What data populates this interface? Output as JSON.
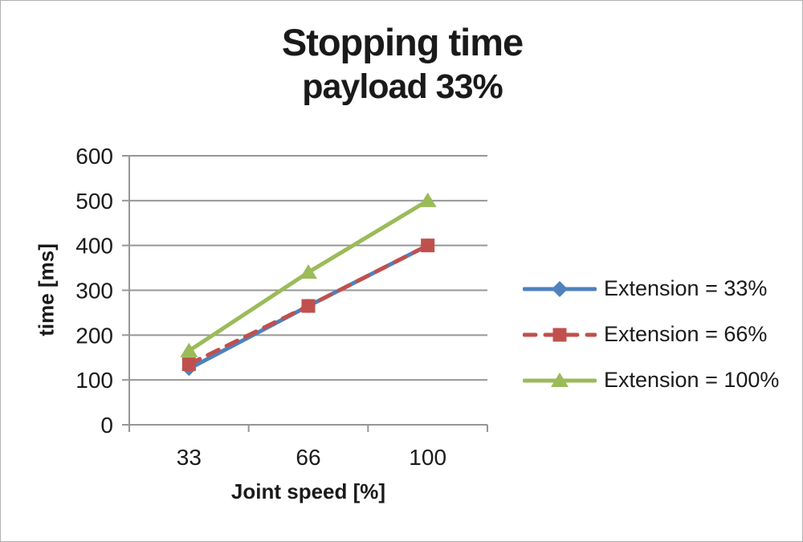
{
  "window": {
    "background": "#ffffff",
    "border_color": "#b0b0b0"
  },
  "chart_data": {
    "type": "line",
    "title": "Stopping time",
    "subtitle": "payload 33%",
    "xlabel": "Joint speed [%]",
    "ylabel": "time [ms]",
    "categories": [
      "33",
      "66",
      "100"
    ],
    "ylim": [
      0,
      600
    ],
    "yticks": [
      "0",
      "100",
      "200",
      "300",
      "400",
      "500",
      "600"
    ],
    "ytick_values": [
      0,
      100,
      200,
      300,
      400,
      500,
      600
    ],
    "grid": true,
    "legend_position": "right",
    "series": [
      {
        "name": "Extension = 33%",
        "values": [
          125,
          265,
          400
        ],
        "color": "#4f81bd",
        "marker": "diamond",
        "line_style": "solid"
      },
      {
        "name": "Extension = 66%",
        "values": [
          135,
          265,
          400
        ],
        "color": "#c0504d",
        "marker": "square",
        "line_style": "dashed"
      },
      {
        "name": "Extension = 100%",
        "values": [
          165,
          340,
          500
        ],
        "color": "#9bbb59",
        "marker": "triangle",
        "line_style": "solid"
      }
    ],
    "grid_color": "#969696",
    "axis_color": "#969696",
    "text_color": "#1a1a1a"
  }
}
